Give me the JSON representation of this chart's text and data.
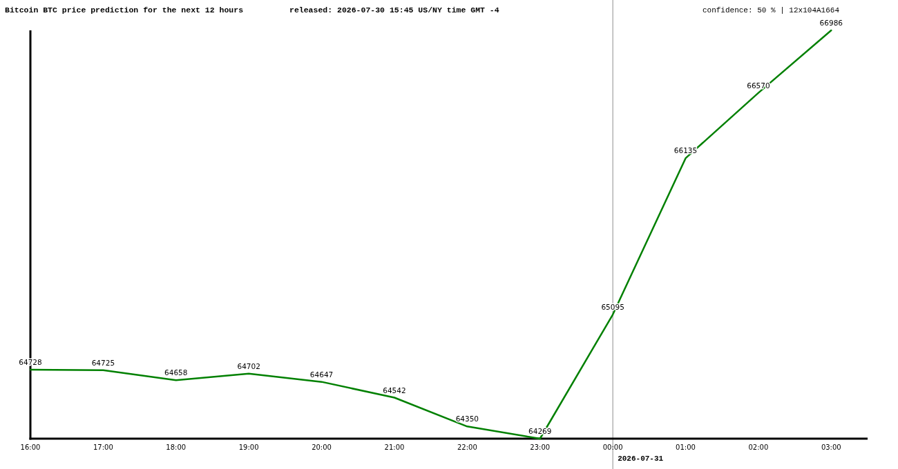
{
  "chart_data": {
    "type": "line",
    "title": "Bitcoin BTC price prediction for the next 12 hours",
    "subtitle": "released: 2026-07-30 15:45 US/NY time GMT -4",
    "annotations": [
      "confidence: 50 % | 12x104A1664"
    ],
    "x": [
      "2026-07-30T16:00",
      "2026-07-30T17:00",
      "2026-07-30T18:00",
      "2026-07-30T19:00",
      "2026-07-30T20:00",
      "2026-07-30T21:00",
      "2026-07-30T22:00",
      "2026-07-30T23:00",
      "2026-07-31T00:00",
      "2026-07-31T01:00",
      "2026-07-31T02:00",
      "2026-07-31T03:00"
    ],
    "series": [
      {
        "color": "#008000",
        "values": [
          64728,
          64725,
          64658,
          64702,
          64647,
          64542,
          64350,
          64269,
          65095,
          66135,
          66570,
          66986
        ]
      }
    ],
    "xlim": [
      "2026-07-30T16:00",
      "2026-07-31T03:30"
    ],
    "xticks": [
      {
        "value": "2026-07-30T16:00",
        "label": "16:00"
      },
      {
        "value": "2026-07-30T17:00",
        "label": "17:00"
      },
      {
        "value": "2026-07-30T18:00",
        "label": "18:00"
      },
      {
        "value": "2026-07-30T19:00",
        "label": "19:00"
      },
      {
        "value": "2026-07-30T20:00",
        "label": "20:00"
      },
      {
        "value": "2026-07-30T21:00",
        "label": "21:00"
      },
      {
        "value": "2026-07-30T22:00",
        "label": "22:00"
      },
      {
        "value": "2026-07-30T23:00",
        "label": "23:00"
      },
      {
        "value": "2026-07-31T00:00",
        "label": "00:00"
      },
      {
        "value": "2026-07-31T01:00",
        "label": "01:00"
      },
      {
        "value": "2026-07-31T02:00",
        "label": "02:00"
      },
      {
        "value": "2026-07-31T03:00",
        "label": "03:00"
      }
    ],
    "ylim": [
      64269,
      66986
    ],
    "tick_labels": "x",
    "data_labels": true,
    "ref_lines": [
      {
        "axis": "x",
        "value": "2026-07-31T00:00",
        "label": "2026-07-31",
        "color": "#8c8c8c"
      }
    ]
  }
}
